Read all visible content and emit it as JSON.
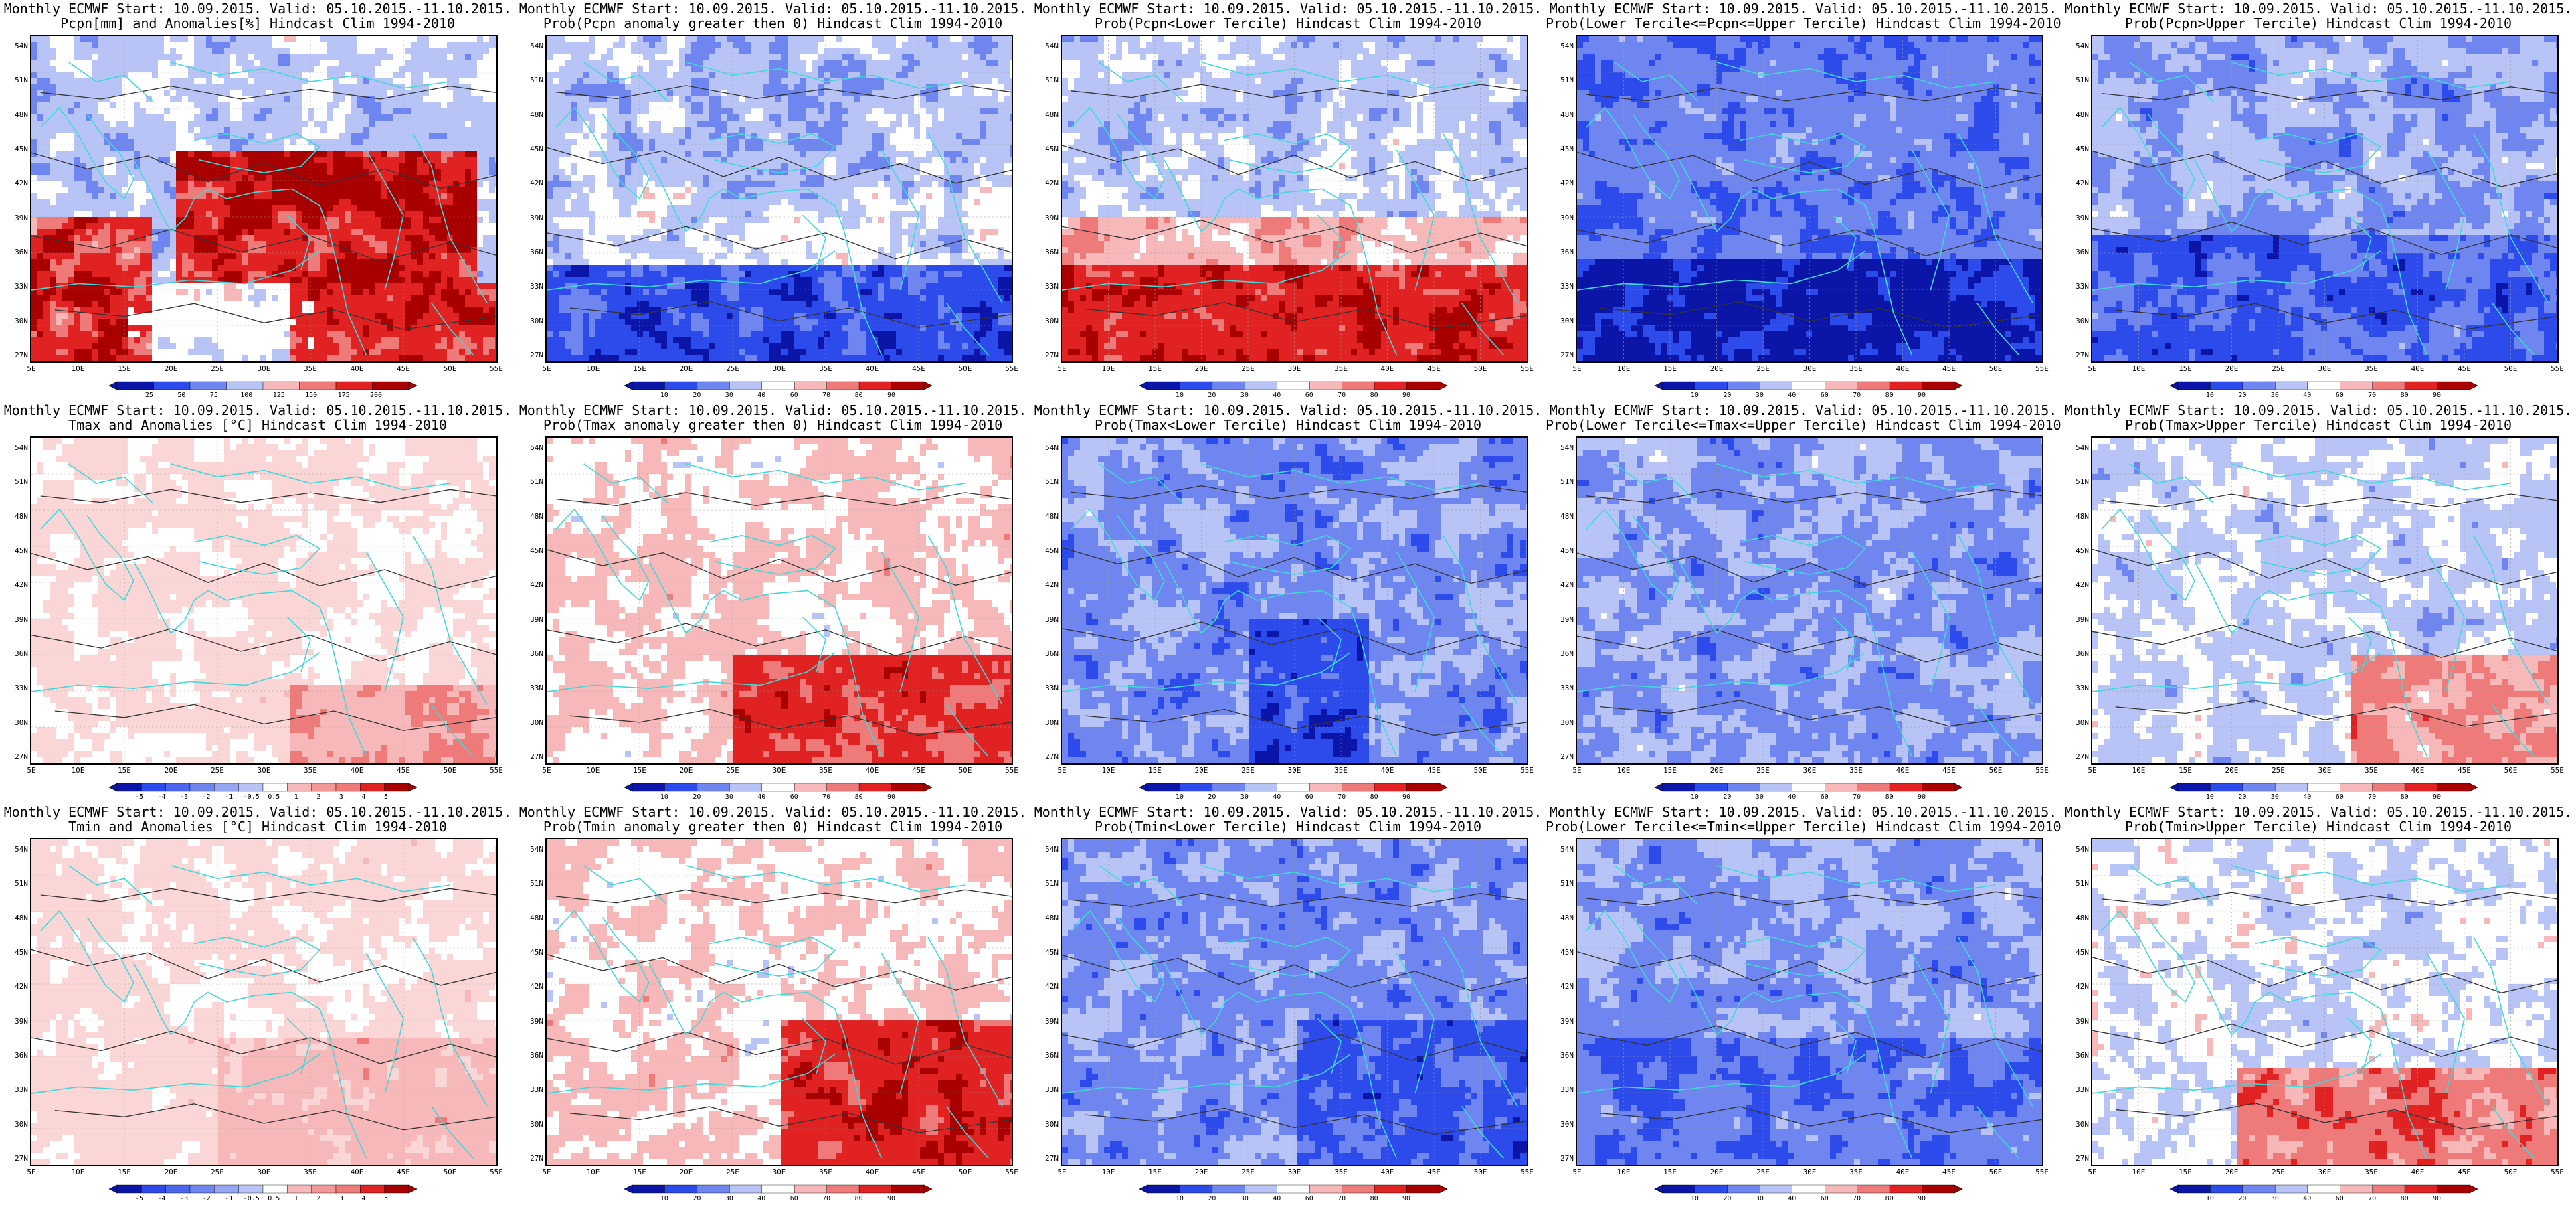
{
  "latitude_labels": [
    "54N",
    "51N",
    "48N",
    "45N",
    "42N",
    "39N",
    "36N",
    "33N",
    "30N",
    "27N"
  ],
  "longitude_labels": [
    "5E",
    "10E",
    "15E",
    "20E",
    "25E",
    "30E",
    "35E",
    "40E",
    "45E",
    "50E",
    "55E"
  ],
  "colors": {
    "coastline": "#40d8d8",
    "contour": "#333333",
    "deep_blue": "#0b16a8",
    "blue": "#2d4bea",
    "mid_blue": "#6f86f0",
    "light_blue": "#b8c4f6",
    "white": "#ffffff",
    "light_red": "#f6b8b8",
    "mid_red": "#ef7a7a",
    "red": "#e02222",
    "deep_red": "#a80000"
  },
  "colorbars": {
    "precip_anomaly": {
      "ticks": [
        "25",
        "50",
        "75",
        "100",
        "125",
        "150",
        "175",
        "200"
      ],
      "colors": [
        "#0b16a8",
        "#2d4bea",
        "#6f86f0",
        "#b8c4f6",
        "#f6b8b8",
        "#ef7a7a",
        "#e02222",
        "#a80000"
      ]
    },
    "probability": {
      "ticks": [
        "10",
        "20",
        "30",
        "40",
        "60",
        "70",
        "80",
        "90"
      ],
      "colors": [
        "#0b16a8",
        "#2d4bea",
        "#6f86f0",
        "#b8c4f6",
        "#ffffff",
        "#f6b8b8",
        "#ef7a7a",
        "#e02222",
        "#a80000"
      ]
    },
    "temp_anomaly": {
      "ticks": [
        "-5",
        "-4",
        "-3",
        "-2",
        "-1",
        "-0.5",
        "0.5",
        "1",
        "2",
        "3",
        "4",
        "5"
      ],
      "colors": [
        "#0b16a8",
        "#2d4bea",
        "#4a66ee",
        "#6f86f0",
        "#95a6f3",
        "#b8c4f6",
        "#ffffff",
        "#f6b8b8",
        "#f29898",
        "#ef7a7a",
        "#e02222",
        "#a80000"
      ]
    }
  },
  "panels": [
    {
      "title1": "Monthly ECMWF Start: 10.09.2015. Valid: 05.10.2015.-11.10.2015.",
      "title2": "Pcpn[mm] and Anomalies[%] Hindcast Clim 1994-2010",
      "scheme": "precip_anom",
      "colorbar": "precip_anomaly"
    },
    {
      "title1": "Monthly ECMWF Start: 10.09.2015. Valid: 05.10.2015.-11.10.2015.",
      "title2": "Prob(Pcpn anomaly greater then 0) Hindcast Clim 1994-2010",
      "scheme": "pcpn_pos",
      "colorbar": "probability"
    },
    {
      "title1": "Monthly ECMWF Start: 10.09.2015. Valid: 05.10.2015.-11.10.2015.",
      "title2": "Prob(Pcpn<Lower Tercile) Hindcast Clim 1994-2010",
      "scheme": "pcpn_low",
      "colorbar": "probability"
    },
    {
      "title1": "Monthly ECMWF Start: 10.09.2015. Valid: 05.10.2015.-11.10.2015.",
      "title2": "Prob(Lower Tercile<=Pcpn<=Upper Tercile) Hindcast Clim 1994-2010",
      "scheme": "pcpn_mid",
      "colorbar": "probability"
    },
    {
      "title1": "Monthly ECMWF Start: 10.09.2015. Valid: 05.10.2015.-11.10.2015.",
      "title2": "Prob(Pcpn>Upper Tercile) Hindcast Clim 1994-2010",
      "scheme": "pcpn_up",
      "colorbar": "probability"
    },
    {
      "title1": "Monthly ECMWF Start: 10.09.2015. Valid: 05.10.2015.-11.10.2015.",
      "title2": "Tmax and Anomalies [°C] Hindcast Clim 1994-2010",
      "scheme": "tmax_anom",
      "colorbar": "temp_anomaly"
    },
    {
      "title1": "Monthly ECMWF Start: 10.09.2015. Valid: 05.10.2015.-11.10.2015.",
      "title2": "Prob(Tmax anomaly greater then 0) Hindcast Clim 1994-2010",
      "scheme": "tmax_pos",
      "colorbar": "probability"
    },
    {
      "title1": "Monthly ECMWF Start: 10.09.2015. Valid: 05.10.2015.-11.10.2015.",
      "title2": "Prob(Tmax<Lower Tercile) Hindcast Clim 1994-2010",
      "scheme": "tmax_low",
      "colorbar": "probability"
    },
    {
      "title1": "Monthly ECMWF Start: 10.09.2015. Valid: 05.10.2015.-11.10.2015.",
      "title2": "Prob(Lower Tercile<=Tmax<=Upper Tercile) Hindcast Clim 1994-2010",
      "scheme": "tmax_mid",
      "colorbar": "probability"
    },
    {
      "title1": "Monthly ECMWF Start: 10.09.2015. Valid: 05.10.2015.-11.10.2015.",
      "title2": "Prob(Tmax>Upper Tercile) Hindcast Clim 1994-2010",
      "scheme": "tmax_up",
      "colorbar": "probability"
    },
    {
      "title1": "Monthly ECMWF Start: 10.09.2015. Valid: 05.10.2015.-11.10.2015.",
      "title2": "Tmin and Anomalies [°C] Hindcast Clim 1994-2010",
      "scheme": "tmin_anom",
      "colorbar": "temp_anomaly"
    },
    {
      "title1": "Monthly ECMWF Start: 10.09.2015. Valid: 05.10.2015.-11.10.2015.",
      "title2": "Prob(Tmin anomaly greater then 0) Hindcast Clim 1994-2010",
      "scheme": "tmin_pos",
      "colorbar": "probability"
    },
    {
      "title1": "Monthly ECMWF Start: 10.09.2015. Valid: 05.10.2015.-11.10.2015.",
      "title2": "Prob(Tmin<Lower Tercile) Hindcast Clim 1994-2010",
      "scheme": "tmin_low",
      "colorbar": "probability"
    },
    {
      "title1": "Monthly ECMWF Start: 10.09.2015. Valid: 05.10.2015.-11.10.2015.",
      "title2": "Prob(Lower Tercile<=Tmin<=Upper Tercile) Hindcast Clim 1994-2010",
      "scheme": "tmin_mid",
      "colorbar": "probability"
    },
    {
      "title1": "Monthly ECMWF Start: 10.09.2015. Valid: 05.10.2015.-11.10.2015.",
      "title2": "Prob(Tmin>Upper Tercile) Hindcast Clim 1994-2010",
      "scheme": "tmin_up",
      "colorbar": "probability"
    }
  ]
}
